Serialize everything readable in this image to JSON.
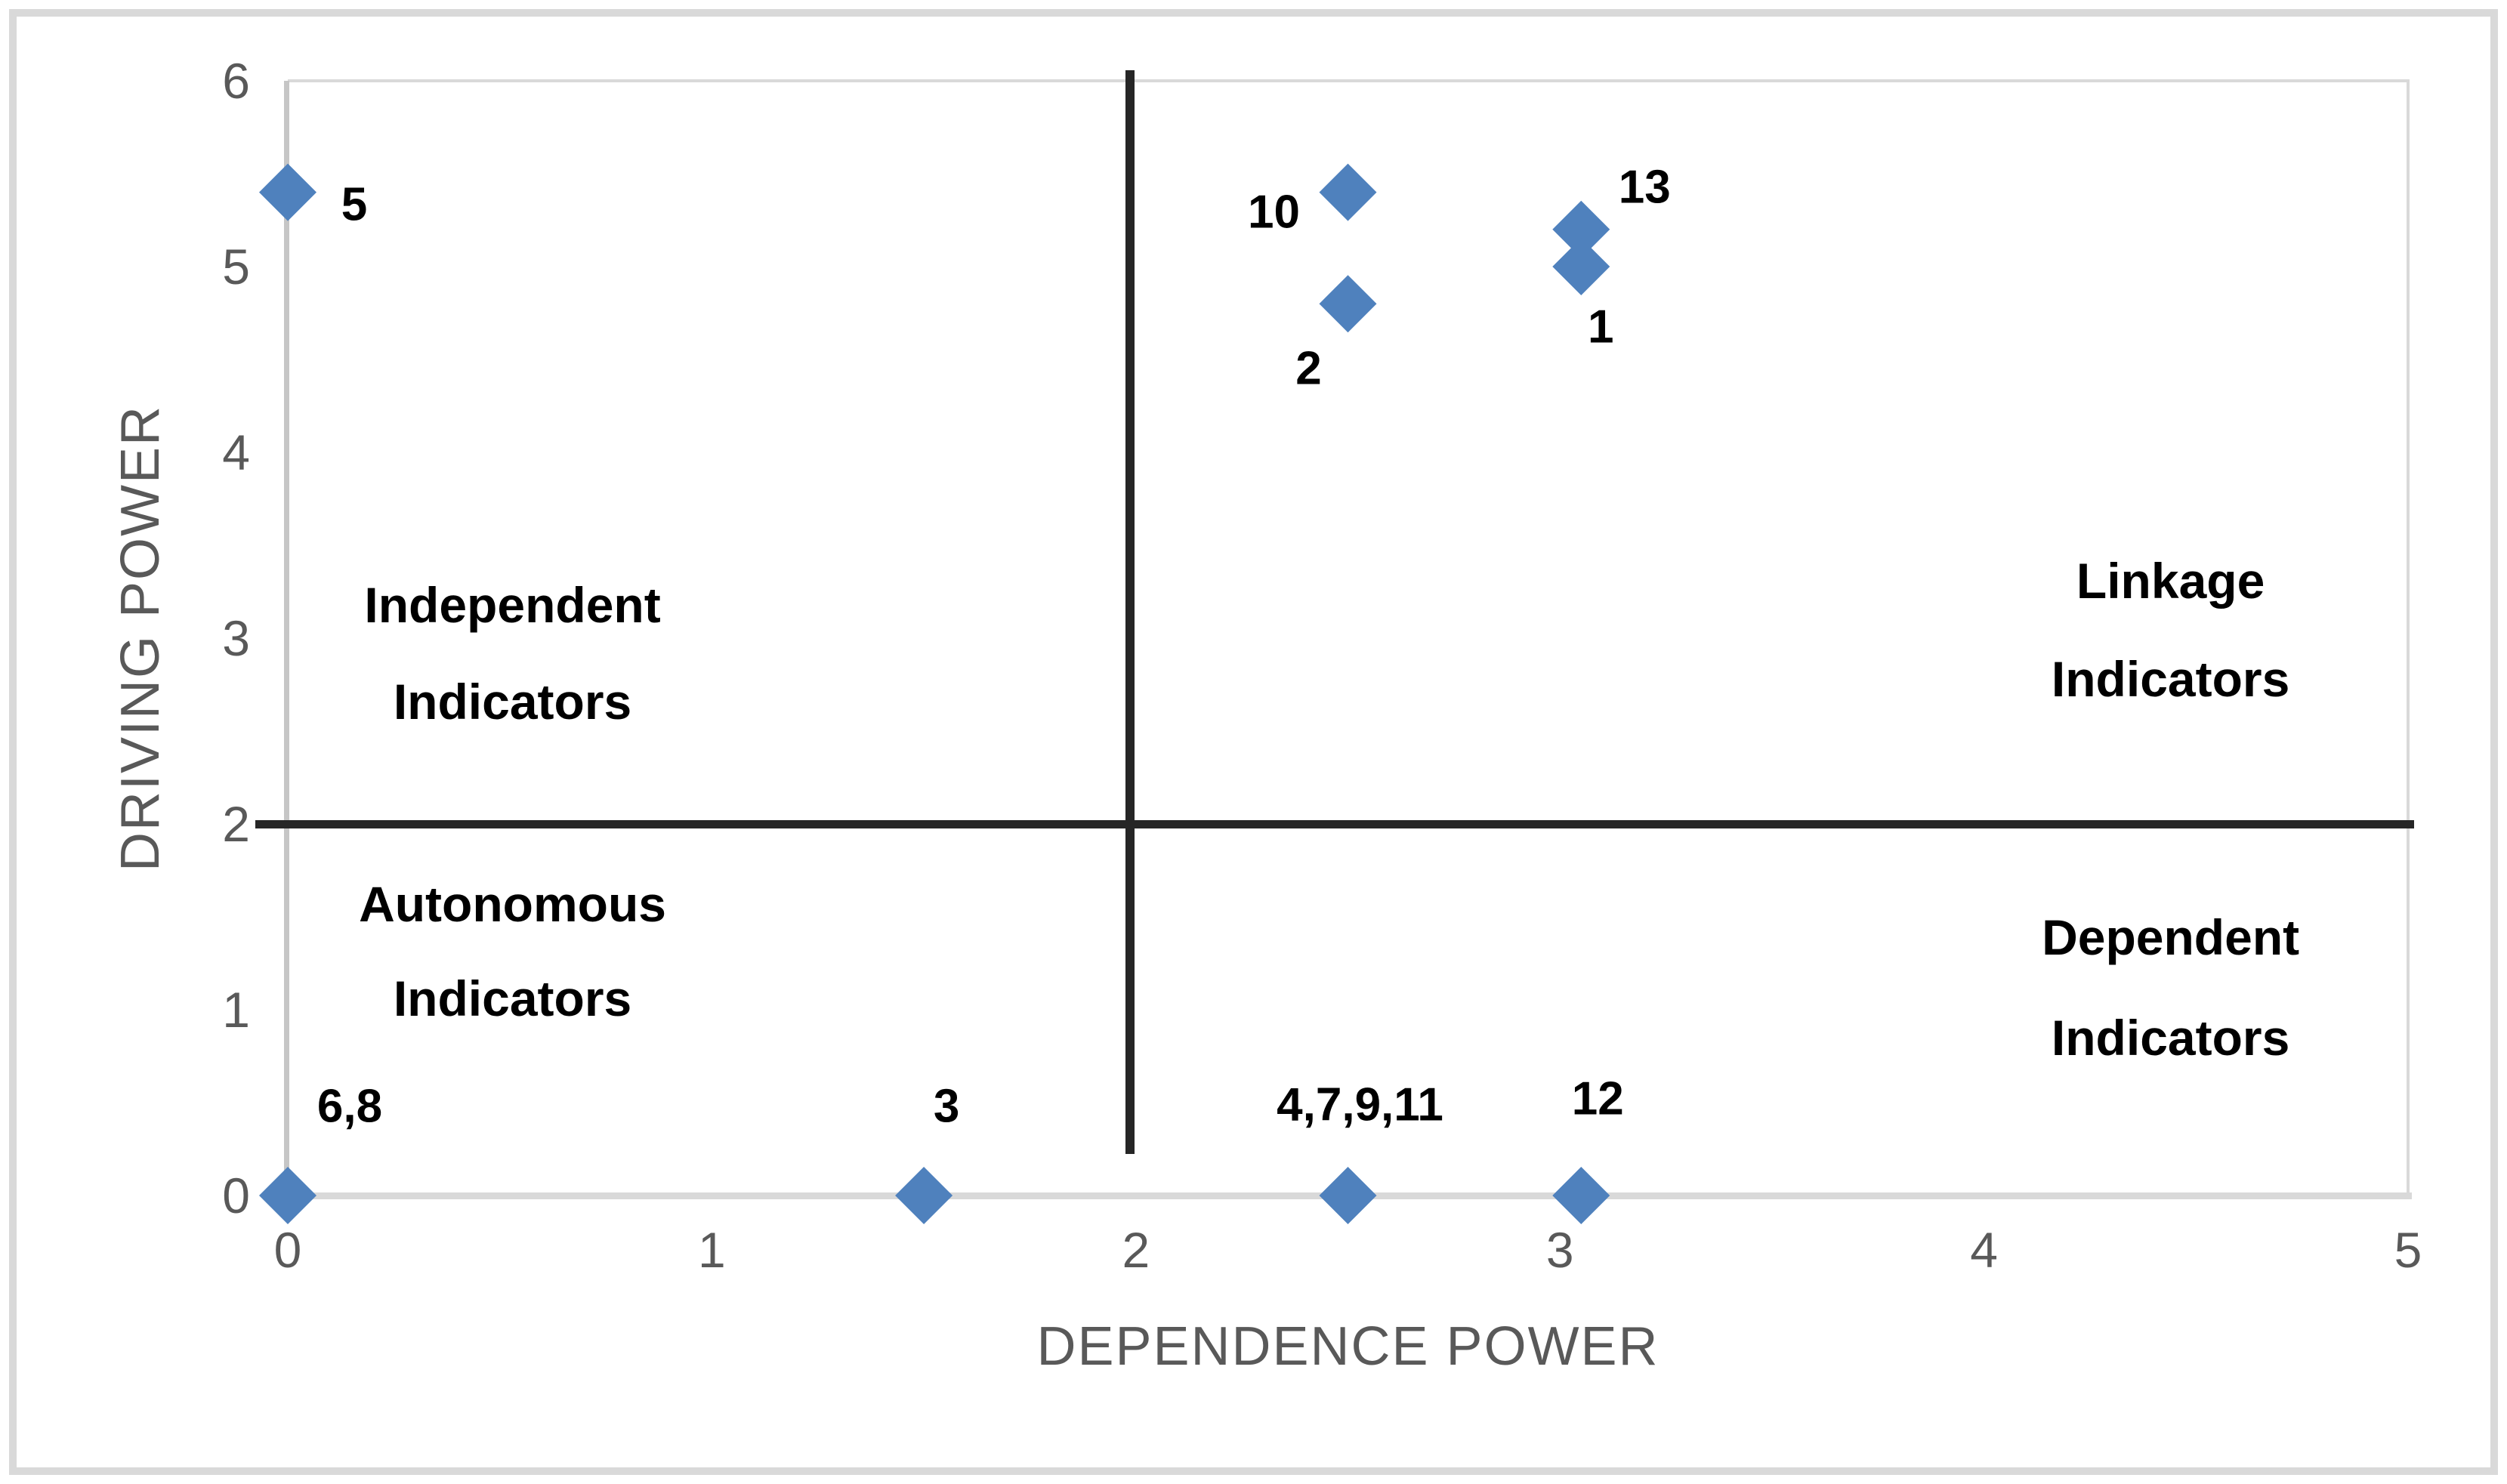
{
  "chart_data": {
    "type": "scatter",
    "title": "",
    "xlabel": "DEPENDENCE POWER",
    "ylabel": "DRIVING POWER",
    "xlim": [
      0,
      5
    ],
    "ylim": [
      0,
      6
    ],
    "x_ticks": [
      "0",
      "1",
      "2",
      "3",
      "4",
      "5"
    ],
    "y_ticks": [
      "0",
      "1",
      "2",
      "3",
      "4",
      "5",
      "6"
    ],
    "grid": false,
    "legend": "none",
    "marker": {
      "shape": "diamond",
      "color": "#4f81bd",
      "size": 76
    },
    "dividers": {
      "vertical_x": 2,
      "horizontal_y": 2
    },
    "series": [
      {
        "name": "indicators",
        "points": [
          {
            "label": "5",
            "x": 0,
            "y": 5.4,
            "label_dx": 88,
            "label_dy": 16
          },
          {
            "label": "10",
            "x": 2.5,
            "y": 5.4,
            "label_dx": -98,
            "label_dy": 26
          },
          {
            "label": "2",
            "x": 2.5,
            "y": 4.8,
            "label_dx": -52,
            "label_dy": 86
          },
          {
            "label": "13",
            "x": 3.05,
            "y": 5.2,
            "label_dx": 84,
            "label_dy": -56
          },
          {
            "label": "1",
            "x": 3.05,
            "y": 5.0,
            "label_dx": 26,
            "label_dy": 80
          },
          {
            "label": "6,8",
            "x": 0,
            "y": 0,
            "label_dx": 82,
            "label_dy": -118
          },
          {
            "label": "3",
            "x": 1.5,
            "y": 0,
            "label_dx": 30,
            "label_dy": -118
          },
          {
            "label": "4,7,9,11",
            "x": 2.5,
            "y": 0,
            "label_dx": 16,
            "label_dy": -120
          },
          {
            "label": "12",
            "x": 3.05,
            "y": 0,
            "label_dx": 22,
            "label_dy": -128
          }
        ]
      }
    ],
    "quadrant_labels": [
      {
        "name": "independent",
        "x": 0.53,
        "lines": [
          {
            "text": "Independent",
            "y": 3.18
          },
          {
            "text": "Indicators",
            "y": 2.66
          }
        ]
      },
      {
        "name": "linkage",
        "x": 4.44,
        "lines": [
          {
            "text": "Linkage",
            "y": 3.31
          },
          {
            "text": "Indicators",
            "y": 2.78
          }
        ]
      },
      {
        "name": "autonomous",
        "x": 0.53,
        "lines": [
          {
            "text": "Autonomous",
            "y": 1.57
          },
          {
            "text": "Indicators",
            "y": 1.06
          }
        ]
      },
      {
        "name": "dependent",
        "x": 4.44,
        "lines": [
          {
            "text": "Dependent",
            "y": 1.39
          },
          {
            "text": "Indicators",
            "y": 0.85
          }
        ]
      }
    ],
    "colors": {
      "marker": "#4f81bd",
      "divider": "#262626",
      "axis_line": "#c6c6c6",
      "plot_border": "#d9d9d9",
      "tick_label": "#595959",
      "axis_title": "#595959",
      "data_label": "#000000",
      "quadrant_label": "#000000",
      "figure_border": "#d9d9d9"
    }
  }
}
